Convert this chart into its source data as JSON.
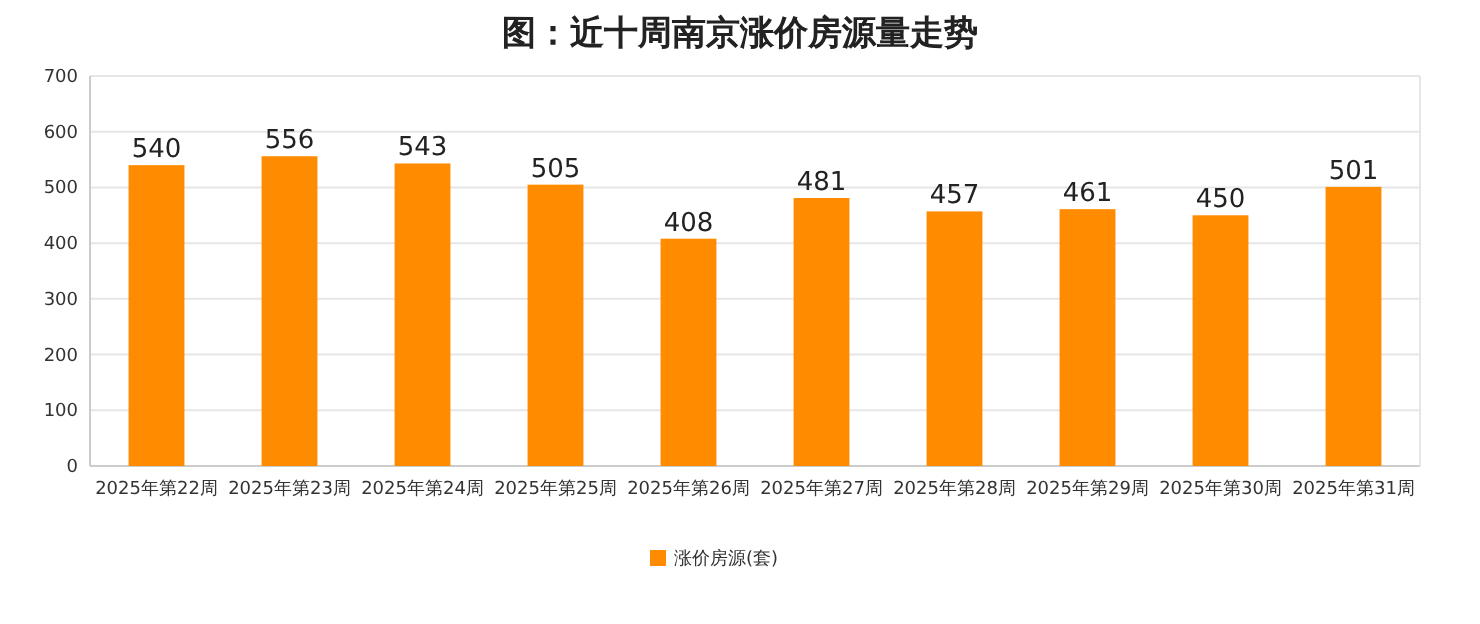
{
  "chart_data": {
    "type": "bar",
    "title": "图：近十周南京涨价房源量走势",
    "categories": [
      "2025年第22周",
      "2025年第23周",
      "2025年第24周",
      "2025年第25周",
      "2025年第26周",
      "2025年第27周",
      "2025年第28周",
      "2025年第29周",
      "2025年第30周",
      "2025年第31周"
    ],
    "series": [
      {
        "name": "涨价房源(套)",
        "color": "#ff8c00",
        "values": [
          540,
          556,
          543,
          505,
          408,
          481,
          457,
          461,
          450,
          501
        ]
      }
    ],
    "ylim": [
      0,
      700
    ],
    "yticks": [
      0,
      100,
      200,
      300,
      400,
      500,
      600,
      700
    ],
    "grid": "y",
    "legend": "bottom",
    "data_labels": true
  }
}
